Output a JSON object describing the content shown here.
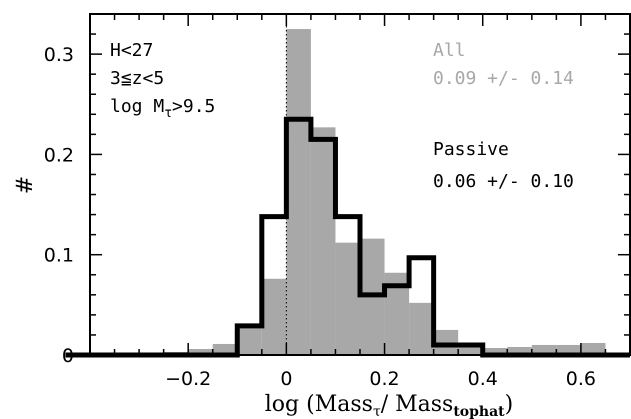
{
  "chart_data": {
    "type": "histogram",
    "xlabel": "log (Mass",
    "xlabel_sub1": "τ",
    "xlabel_mid": "/ Mass",
    "xlabel_sub2": "tophat",
    "xlabel_end": ")",
    "ylabel": "#",
    "xlim": [
      -0.4,
      0.7
    ],
    "ylim": [
      0,
      0.34
    ],
    "x_ticks": [
      -0.2,
      0.0,
      0.2,
      0.4,
      0.6
    ],
    "x_tick_labels": [
      "−0.2",
      "0",
      "0.2",
      "0.4",
      "0.6"
    ],
    "y_ticks": [
      0,
      0.1,
      0.2,
      0.3
    ],
    "y_tick_labels": [
      "0",
      "0.1",
      "0.2",
      "0.3"
    ],
    "bin_width": 0.05,
    "zero_line": 0,
    "series": [
      {
        "name": "All",
        "style": "filled",
        "color": "#a8a8a8",
        "bin_starts": [
          -0.25,
          -0.2,
          -0.15,
          -0.1,
          -0.05,
          0.0,
          0.05,
          0.1,
          0.15,
          0.2,
          0.25,
          0.3,
          0.35,
          0.4,
          0.45,
          0.5,
          0.55,
          0.6
        ],
        "values": [
          0.003,
          0.006,
          0.011,
          0.029,
          0.076,
          0.325,
          0.227,
          0.112,
          0.116,
          0.082,
          0.052,
          0.025,
          0.012,
          0.007,
          0.008,
          0.01,
          0.01,
          0.012
        ]
      },
      {
        "name": "Passive",
        "style": "step",
        "color": "#000000",
        "bin_starts": [
          -0.5,
          -0.15,
          -0.1,
          -0.05,
          0.0,
          0.05,
          0.1,
          0.15,
          0.2,
          0.25,
          0.3,
          0.35,
          0.4
        ],
        "values": [
          0.0,
          0.0,
          0.029,
          0.138,
          0.235,
          0.215,
          0.138,
          0.06,
          0.069,
          0.097,
          0.01,
          0.01,
          0.0
        ]
      }
    ],
    "annotations_left": [
      "H<27",
      "3≦z<5",
      "log M",
      "τ",
      ">9.5"
    ],
    "annotations_all": [
      "All",
      "0.09 +/- 0.14"
    ],
    "annotations_passive": [
      "Passive",
      "0.06 +/- 0.10"
    ]
  }
}
